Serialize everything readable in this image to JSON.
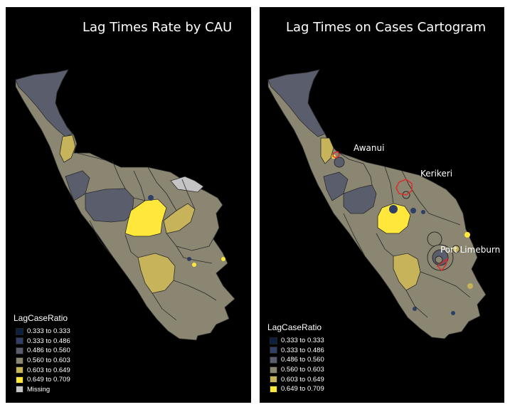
{
  "left_panel": {
    "title": "Lag Times Rate by CAU",
    "legend": {
      "title": "LagCaseRatio",
      "items": [
        {
          "label": "0.333 to 0.333",
          "color": "#0b1f3f"
        },
        {
          "label": "0.333 to 0.486",
          "color": "#2f3f66"
        },
        {
          "label": "0.486 to 0.560",
          "color": "#5a5e6c"
        },
        {
          "label": "0.560 to 0.603",
          "color": "#8a8672"
        },
        {
          "label": "0.603 to 0.649",
          "color": "#c7b35a"
        },
        {
          "label": "0.649 to 0.709",
          "color": "#ffe83b"
        },
        {
          "label": "Missing",
          "color": "#c4c4c4"
        }
      ]
    }
  },
  "right_panel": {
    "title": "Lag Times on Cases Cartogram",
    "places": [
      {
        "name": "Awanui"
      },
      {
        "name": "Kerikeri"
      },
      {
        "name": "Port Limeburn"
      }
    ],
    "legend": {
      "title": "LagCaseRatio",
      "items": [
        {
          "label": "0.333 to 0.333",
          "color": "#0b1f3f"
        },
        {
          "label": "0.333 to 0.486",
          "color": "#2f3f66"
        },
        {
          "label": "0.486 to 0.560",
          "color": "#5a5e6c"
        },
        {
          "label": "0.560 to 0.603",
          "color": "#8a8672"
        },
        {
          "label": "0.603 to 0.649",
          "color": "#c7b35a"
        },
        {
          "label": "0.649 to 0.709",
          "color": "#ffe83b"
        }
      ]
    }
  },
  "colors": {
    "background": "#000000",
    "region_stroke": "#2a2a2a",
    "highlight": "#e32626"
  }
}
